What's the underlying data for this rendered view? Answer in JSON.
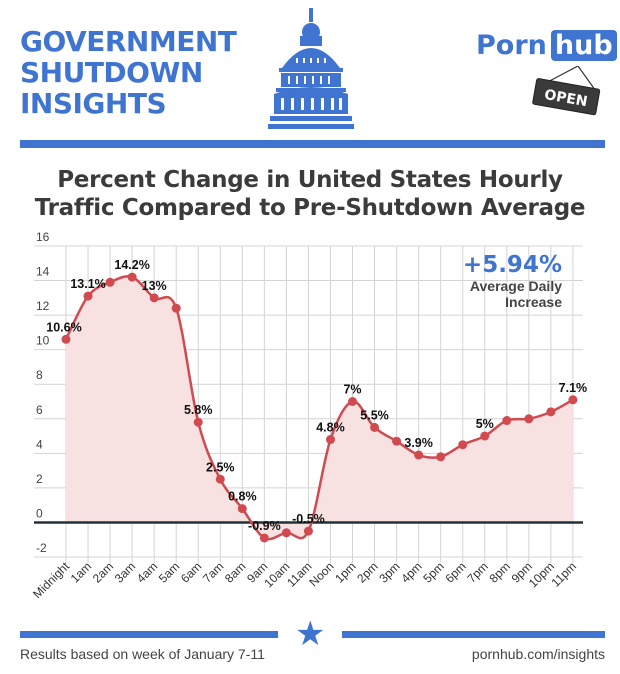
{
  "header": {
    "title_lines": [
      "GOVERNMENT",
      "SHUTDOWN",
      "INSIGHTS"
    ],
    "logo": {
      "part1": "Porn",
      "part2": "hub"
    },
    "sign_text": "OPEN"
  },
  "colors": {
    "brand_blue": "#3f74d0",
    "line_red": "#d04a4f",
    "area_fill": "#f8e1e1",
    "zero_line": "#22303a"
  },
  "callout": {
    "value": "+5.94%",
    "line1": "Average Daily",
    "line2": "Increase"
  },
  "footer": {
    "note": "Results based on week of January 7-11",
    "url": "pornhub.com/insights",
    "icon": "star-icon"
  },
  "chart_data": {
    "type": "area",
    "title_lines": [
      "Percent Change in United States Hourly",
      "Traffic Compared to Pre-Shutdown Average"
    ],
    "xlabel": "",
    "ylabel": "",
    "ylim": [
      -2,
      16
    ],
    "yticks": [
      16,
      14,
      12,
      10,
      8,
      6,
      4,
      2,
      0,
      -2
    ],
    "grid": true,
    "categories": [
      "Midnight",
      "1am",
      "2am",
      "3am",
      "4am",
      "5am",
      "6am",
      "7am",
      "8am",
      "9am",
      "10am",
      "11am",
      "Noon",
      "1pm",
      "2pm",
      "3pm",
      "4pm",
      "5pm",
      "6pm",
      "7pm",
      "8pm",
      "9pm",
      "10pm",
      "11pm"
    ],
    "values": [
      10.6,
      13.1,
      13.9,
      14.2,
      13.0,
      12.4,
      5.8,
      2.5,
      0.8,
      -0.9,
      -0.6,
      -0.5,
      4.8,
      7.0,
      5.5,
      4.7,
      3.9,
      3.8,
      4.5,
      5.0,
      5.9,
      6.0,
      6.4,
      7.1
    ],
    "data_labels": {
      "0": "10.6%",
      "1": "13.1%",
      "3": "14.2%",
      "4": "13%",
      "6": "5.8%",
      "7": "2.5%",
      "8": "0.8%",
      "9": "-0.9%",
      "11": "-0.5%",
      "12": "4.8%",
      "13": "7%",
      "14": "5.5%",
      "16": "3.9%",
      "19": "5%",
      "23": "7.1%"
    }
  }
}
